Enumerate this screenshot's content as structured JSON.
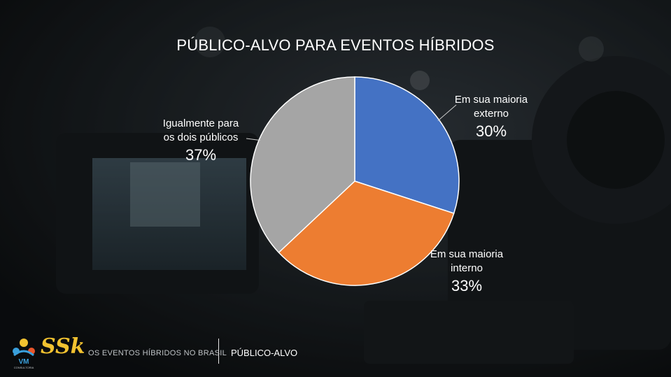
{
  "slide": {
    "title": "PÚBLICO-ALVO PARA EVENTOS HÍBRIDOS",
    "footer_left": "OS EVENTOS HÍBRIDOS NO BRASIL",
    "footer_right": "PÚBLICO-ALVO"
  },
  "logos": {
    "vm": "VM",
    "vm_sub": "CONSULTORIA",
    "ssk": "SSk"
  },
  "chart_data": {
    "type": "pie",
    "title": "PÚBLICO-ALVO PARA EVENTOS HÍBRIDOS",
    "categories": [
      "Em sua maioria externo",
      "Em sua maioria interno",
      "Igualmente para os dois públicos"
    ],
    "values": [
      30,
      33,
      37
    ],
    "value_labels": [
      "30%",
      "33%",
      "37%"
    ],
    "colors": [
      "#4472c4",
      "#ed7d31",
      "#a5a5a5"
    ],
    "legend": "none"
  },
  "labels": [
    {
      "line1": "Em sua maioria",
      "line2": "externo",
      "pct": "30%"
    },
    {
      "line1": "Em sua maioria",
      "line2": "interno",
      "pct": "33%"
    },
    {
      "line1": "Igualmente para",
      "line2": "os dois públicos",
      "pct": "37%"
    }
  ]
}
